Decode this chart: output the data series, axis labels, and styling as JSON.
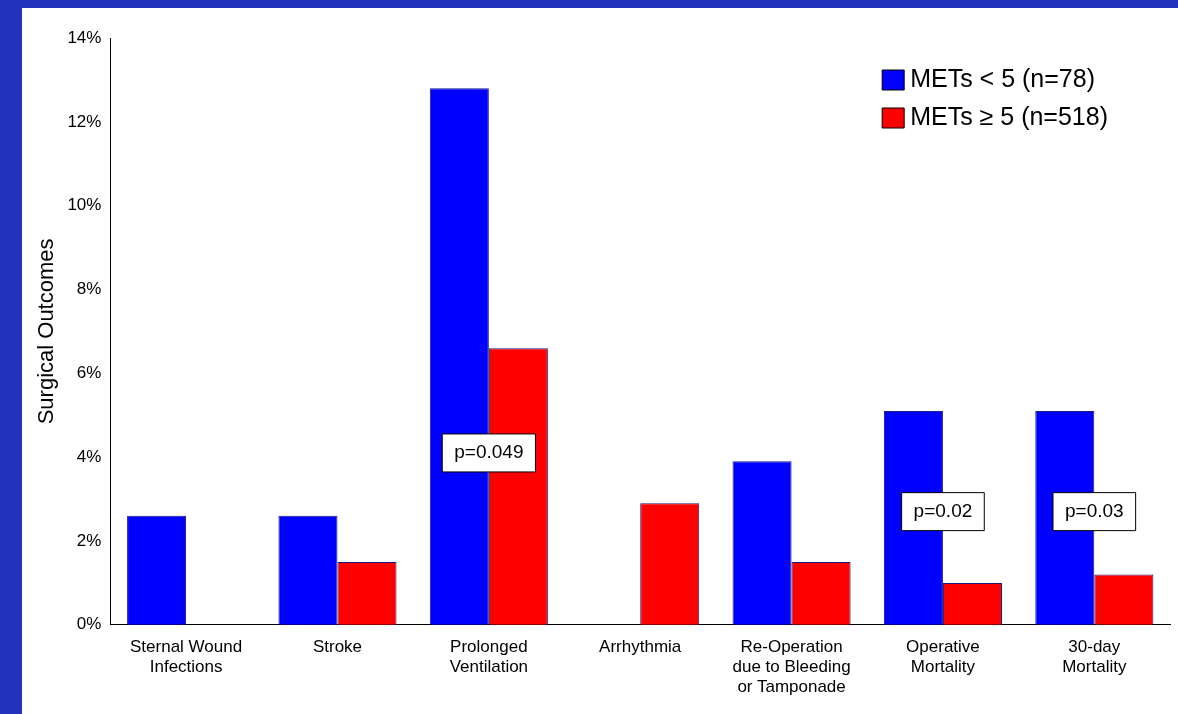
{
  "chart_data": {
    "type": "bar",
    "ylabel": "Surgical Outcomes",
    "categories": [
      "Sternal Wound Infections",
      "Stroke",
      "Prolonged Ventilation",
      "Arrhythmia",
      "Re-Operation due to Bleeding or Tamponade",
      "Operative Mortality",
      "30-day Mortality"
    ],
    "series": [
      {
        "name": "METs < 5 (n=78)",
        "color": "#0000ff",
        "values": [
          2.6,
          2.6,
          12.8,
          0,
          3.9,
          5.1,
          5.1
        ]
      },
      {
        "name": "METs ≥ 5 (n=518)",
        "color": "#ff0000",
        "values": [
          0,
          1.5,
          6.6,
          2.9,
          1.5,
          1.0,
          1.2
        ]
      }
    ],
    "ylim": [
      0,
      14
    ],
    "yticks": [
      {
        "value": 0,
        "label": "0%"
      },
      {
        "value": 2,
        "label": "2%"
      },
      {
        "value": 4,
        "label": "4%"
      },
      {
        "value": 6,
        "label": "6%"
      },
      {
        "value": 8,
        "label": "8%"
      },
      {
        "value": 10,
        "label": "10%"
      },
      {
        "value": 12,
        "label": "12%"
      },
      {
        "value": 14,
        "label": "14%"
      }
    ],
    "grid": false,
    "legend": "top right",
    "annotations": [
      {
        "text": "p=0.049",
        "x": "Prolonged Ventilation",
        "y": 4.1
      },
      {
        "text": "p=0.02",
        "x": "Operative Mortality",
        "y": 2.7
      },
      {
        "text": "p=0.03",
        "x": "30-day Mortality",
        "y": 2.7
      }
    ]
  }
}
